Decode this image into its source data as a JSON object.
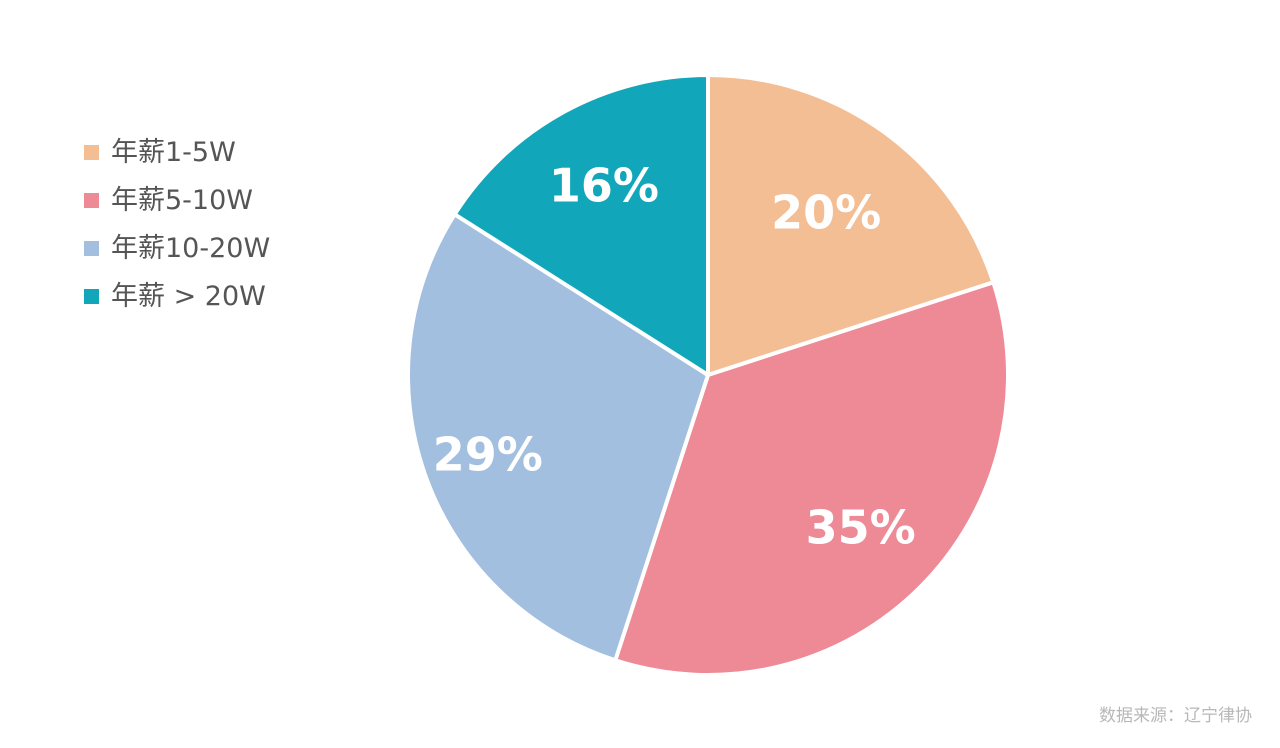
{
  "chart_data": {
    "type": "pie",
    "categories": [
      "年薪1-5W",
      "年薪5-10W",
      "年薪10-20W",
      "年薪 > 20W"
    ],
    "values": [
      20,
      35,
      29,
      16
    ],
    "labels": [
      "20%",
      "35%",
      "29%",
      "16%"
    ],
    "colors": [
      "#F4BE94",
      "#EE8996",
      "#A3BFE0",
      "#12A6BB"
    ],
    "legend_position": "left"
  },
  "legend": {
    "items": [
      {
        "label": "年薪1-5W",
        "color": "#F4BE94"
      },
      {
        "label": "年薪5-10W",
        "color": "#EE8996"
      },
      {
        "label": "年薪10-20W",
        "color": "#A3BFE0"
      },
      {
        "label": "年薪 > 20W",
        "color": "#12A6BB"
      }
    ]
  },
  "source": "数据来源：辽宁律协"
}
